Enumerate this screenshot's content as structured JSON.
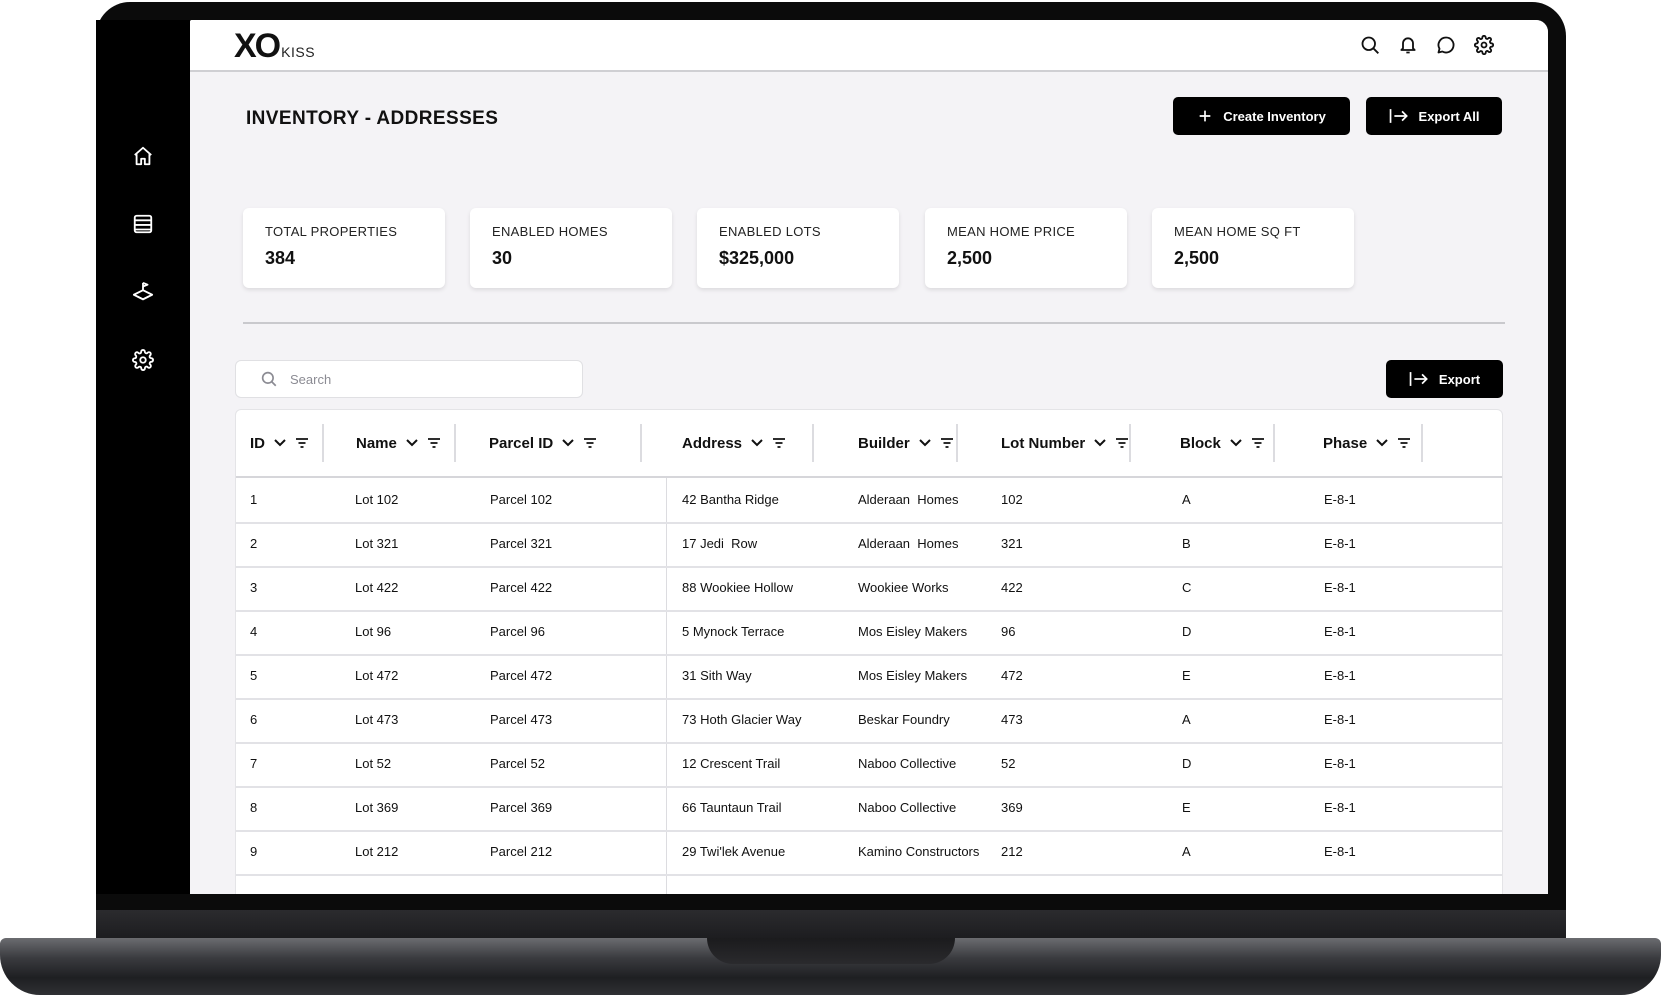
{
  "app": {
    "logo_main": "XO",
    "logo_sub": "KISS"
  },
  "sidebar": {
    "items": [
      {
        "icon": "home-icon"
      },
      {
        "icon": "list-icon"
      },
      {
        "icon": "map-pin-layers-icon"
      },
      {
        "icon": "gear-icon"
      }
    ]
  },
  "topbar": {
    "icons": [
      "search-icon",
      "bell-icon",
      "chat-icon",
      "gear-icon"
    ]
  },
  "page": {
    "title": "INVENTORY - ADDRESSES",
    "create_label": "Create Inventory",
    "export_all_label": "Export All",
    "export_label": "Export"
  },
  "kpis": [
    {
      "label": "TOTAL PROPERTIES",
      "value": "384"
    },
    {
      "label": "ENABLED HOMES",
      "value": "30"
    },
    {
      "label": "ENABLED LOTS",
      "value": "$325,000"
    },
    {
      "label": "MEAN HOME PRICE",
      "value": "2,500"
    },
    {
      "label": "MEAN HOME SQ FT",
      "value": "2,500"
    }
  ],
  "search": {
    "placeholder": "Search"
  },
  "table": {
    "columns": [
      "ID",
      "Name",
      "Parcel ID",
      "Address",
      "Builder",
      "Lot Number",
      "Block",
      "Phase"
    ],
    "rows": [
      [
        "1",
        "Lot 102",
        "Parcel 102",
        "42 Bantha Ridge",
        "Alderaan  Homes",
        "102",
        "A",
        "E-8-1"
      ],
      [
        "2",
        "Lot 321",
        "Parcel 321",
        "17 Jedi  Row",
        "Alderaan  Homes",
        "321",
        "B",
        "E-8-1"
      ],
      [
        "3",
        "Lot 422",
        "Parcel 422",
        "88 Wookiee Hollow",
        "Wookiee Works",
        "422",
        "C",
        "E-8-1"
      ],
      [
        "4",
        "Lot 96",
        "Parcel 96",
        "5 Mynock Terrace",
        "Mos Eisley Makers",
        "96",
        "D",
        "E-8-1"
      ],
      [
        "5",
        "Lot 472",
        "Parcel 472",
        "31 Sith Way",
        "Mos Eisley Makers",
        "472",
        "E",
        "E-8-1"
      ],
      [
        "6",
        "Lot 473",
        "Parcel 473",
        "73 Hoth Glacier Way",
        "Beskar Foundry",
        "473",
        "A",
        "E-8-1"
      ],
      [
        "7",
        "Lot 52",
        "Parcel 52",
        "12 Crescent Trail",
        "Naboo Collective",
        "52",
        "D",
        "E-8-1"
      ],
      [
        "8",
        "Lot 369",
        "Parcel 369",
        "66 Tauntaun Trail",
        "Naboo Collective",
        "369",
        "E",
        "E-8-1"
      ],
      [
        "9",
        "Lot 212",
        "Parcel 212",
        "29 Twi'lek Avenue",
        "Kamino Constructors",
        "212",
        "A",
        "E-8-1"
      ]
    ]
  }
}
